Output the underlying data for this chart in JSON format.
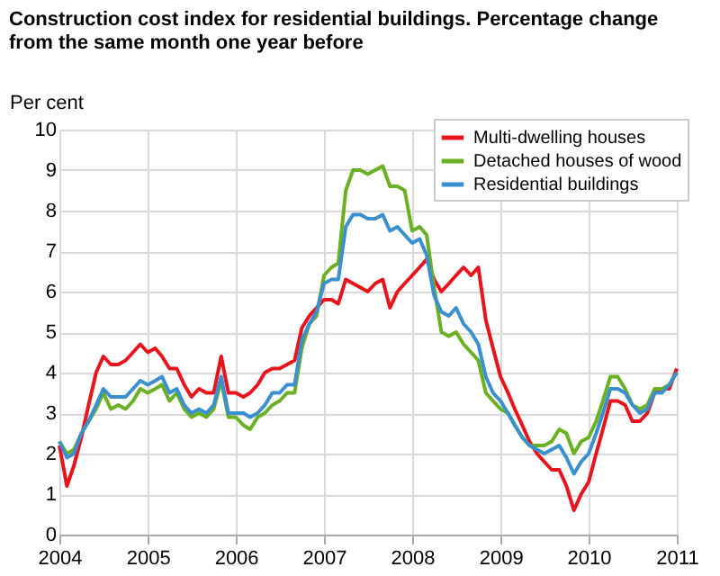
{
  "chart_data": {
    "type": "line",
    "title": [
      "Construction cost index for residential buildings. Percentage change",
      "from the same month one year before"
    ],
    "ylabel": "Per cent",
    "x": [
      "2004-01",
      "2004-02",
      "2004-03",
      "2004-04",
      "2004-05",
      "2004-06",
      "2004-07",
      "2004-08",
      "2004-09",
      "2004-10",
      "2004-11",
      "2004-12",
      "2005-01",
      "2005-02",
      "2005-03",
      "2005-04",
      "2005-05",
      "2005-06",
      "2005-07",
      "2005-08",
      "2005-09",
      "2005-10",
      "2005-11",
      "2005-12",
      "2006-01",
      "2006-02",
      "2006-03",
      "2006-04",
      "2006-05",
      "2006-06",
      "2006-07",
      "2006-08",
      "2006-09",
      "2006-10",
      "2006-11",
      "2006-12",
      "2007-01",
      "2007-02",
      "2007-03",
      "2007-04",
      "2007-05",
      "2007-06",
      "2007-07",
      "2007-08",
      "2007-09",
      "2007-10",
      "2007-11",
      "2007-12",
      "2008-01",
      "2008-02",
      "2008-03",
      "2008-04",
      "2008-05",
      "2008-06",
      "2008-07",
      "2008-08",
      "2008-09",
      "2008-10",
      "2008-11",
      "2008-12",
      "2009-01",
      "2009-02",
      "2009-03",
      "2009-04",
      "2009-05",
      "2009-06",
      "2009-07",
      "2009-08",
      "2009-09",
      "2009-10",
      "2009-11",
      "2009-12",
      "2010-01",
      "2010-02",
      "2010-03",
      "2010-04",
      "2010-05",
      "2010-06",
      "2010-07",
      "2010-08",
      "2010-09",
      "2010-10",
      "2010-11",
      "2010-12",
      "2011-01"
    ],
    "series": [
      {
        "name": "Multi-dwelling houses",
        "color": "#e8141c",
        "values": [
          2.2,
          1.2,
          1.7,
          2.4,
          3.2,
          4.0,
          4.4,
          4.2,
          4.2,
          4.3,
          4.5,
          4.7,
          4.5,
          4.6,
          4.4,
          4.1,
          4.1,
          3.7,
          3.4,
          3.6,
          3.5,
          3.5,
          4.4,
          3.5,
          3.5,
          3.4,
          3.5,
          3.7,
          4.0,
          4.1,
          4.1,
          4.2,
          4.3,
          5.1,
          5.4,
          5.6,
          5.8,
          5.8,
          5.7,
          6.3,
          6.2,
          6.1,
          6.0,
          6.2,
          6.3,
          5.6,
          6.0,
          6.2,
          6.4,
          6.6,
          6.8,
          6.3,
          6.0,
          6.2,
          6.4,
          6.6,
          6.4,
          6.6,
          5.3,
          4.6,
          3.9,
          3.5,
          3.1,
          2.7,
          2.3,
          2.0,
          1.8,
          1.6,
          1.6,
          1.2,
          0.6,
          1.0,
          1.3,
          2.0,
          2.6,
          3.3,
          3.3,
          3.2,
          2.8,
          2.8,
          3.0,
          3.5,
          3.6,
          3.6,
          4.1
        ]
      },
      {
        "name": "Detached houses of wood",
        "color": "#6ab023",
        "values": [
          2.3,
          2.0,
          2.1,
          2.5,
          2.8,
          3.1,
          3.5,
          3.1,
          3.2,
          3.1,
          3.3,
          3.6,
          3.5,
          3.6,
          3.7,
          3.3,
          3.5,
          3.1,
          2.9,
          3.0,
          2.9,
          3.1,
          3.8,
          2.9,
          2.9,
          2.7,
          2.6,
          2.9,
          3.0,
          3.2,
          3.3,
          3.5,
          3.5,
          4.6,
          5.2,
          5.4,
          6.4,
          6.6,
          6.7,
          8.5,
          9.0,
          9.0,
          8.9,
          9.0,
          9.1,
          8.6,
          8.6,
          8.5,
          7.5,
          7.6,
          7.4,
          6.1,
          5.0,
          4.9,
          5.0,
          4.7,
          4.5,
          4.3,
          3.5,
          3.3,
          3.1,
          3.0,
          2.7,
          2.4,
          2.2,
          2.2,
          2.2,
          2.3,
          2.6,
          2.5,
          2.0,
          2.3,
          2.4,
          2.8,
          3.3,
          3.9,
          3.9,
          3.6,
          3.2,
          3.1,
          3.2,
          3.6,
          3.6,
          3.7,
          4.0
        ]
      },
      {
        "name": "Residential buildings",
        "color": "#3a8fd0",
        "values": [
          2.3,
          1.9,
          2.0,
          2.5,
          2.8,
          3.2,
          3.6,
          3.4,
          3.4,
          3.4,
          3.6,
          3.8,
          3.7,
          3.8,
          3.9,
          3.5,
          3.6,
          3.2,
          3.0,
          3.1,
          3.0,
          3.2,
          3.9,
          3.0,
          3.0,
          3.0,
          2.9,
          3.0,
          3.2,
          3.5,
          3.5,
          3.7,
          3.7,
          4.8,
          5.2,
          5.5,
          6.2,
          6.3,
          6.3,
          7.6,
          7.9,
          7.9,
          7.8,
          7.8,
          7.9,
          7.5,
          7.6,
          7.4,
          7.2,
          7.3,
          6.9,
          5.9,
          5.5,
          5.4,
          5.6,
          5.2,
          5.0,
          4.7,
          3.9,
          3.5,
          3.3,
          3.0,
          2.7,
          2.4,
          2.2,
          2.1,
          2.0,
          2.1,
          2.2,
          1.9,
          1.5,
          1.8,
          2.0,
          2.5,
          3.0,
          3.6,
          3.6,
          3.5,
          3.2,
          3.0,
          3.1,
          3.5,
          3.5,
          3.7,
          4.0
        ]
      }
    ],
    "xlim": [
      "2004-01",
      "2011-01"
    ],
    "xticks": [
      {
        "value": "2004-01",
        "label": "2004"
      },
      {
        "value": "2005-01",
        "label": "2005"
      },
      {
        "value": "2006-01",
        "label": "2006"
      },
      {
        "value": "2007-01",
        "label": "2007"
      },
      {
        "value": "2008-01",
        "label": "2008"
      },
      {
        "value": "2009-01",
        "label": "2009"
      },
      {
        "value": "2010-01",
        "label": "2010"
      },
      {
        "value": "2011-01",
        "label": "2011"
      }
    ],
    "ylim": [
      0,
      10
    ],
    "yticks": [
      0,
      1,
      2,
      3,
      4,
      5,
      6,
      7,
      8,
      9,
      10
    ],
    "grid": true,
    "legend": "top right",
    "line_style": "solid",
    "marker": "none"
  }
}
